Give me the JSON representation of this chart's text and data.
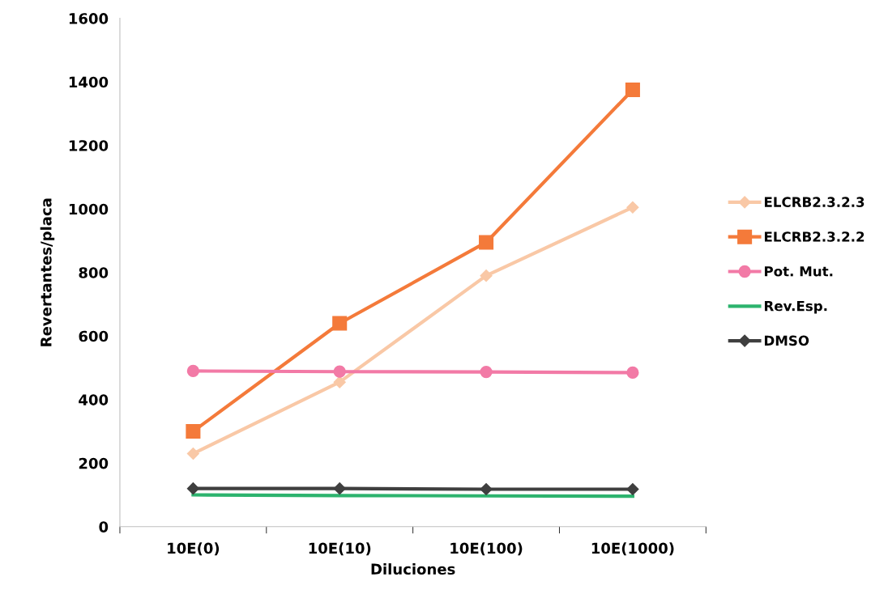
{
  "chart_data": {
    "type": "line",
    "xlabel": "Diluciones",
    "ylabel": "Revertantes/placa",
    "categories": [
      "10E(0)",
      "10E(10)",
      "10E(100)",
      "10E(1000)"
    ],
    "series": [
      {
        "name": "ELCRB2.3.2.3",
        "color": "#f9c8a6",
        "marker": "diamond",
        "values": [
          230,
          455,
          790,
          1005
        ]
      },
      {
        "name": "ELCRB2.3.2.2",
        "color": "#f47a3a",
        "marker": "square",
        "values": [
          300,
          640,
          895,
          1375
        ]
      },
      {
        "name": "Pot. Mut.",
        "color": "#f27aa6",
        "marker": "circle",
        "values": [
          490,
          488,
          487,
          485
        ]
      },
      {
        "name": "Rev.Esp.",
        "color": "#2db36e",
        "marker": "none",
        "values": [
          100,
          98,
          97,
          96
        ]
      },
      {
        "name": "DMSO",
        "color": "#3f3f3f",
        "marker": "diamond",
        "values": [
          120,
          120,
          118,
          118
        ]
      }
    ],
    "ylim": [
      0,
      1600
    ],
    "yticks": [
      0,
      200,
      400,
      600,
      800,
      1000,
      1200,
      1400,
      1600
    ],
    "grid": false,
    "legend": "right",
    "line_style": "solid"
  }
}
